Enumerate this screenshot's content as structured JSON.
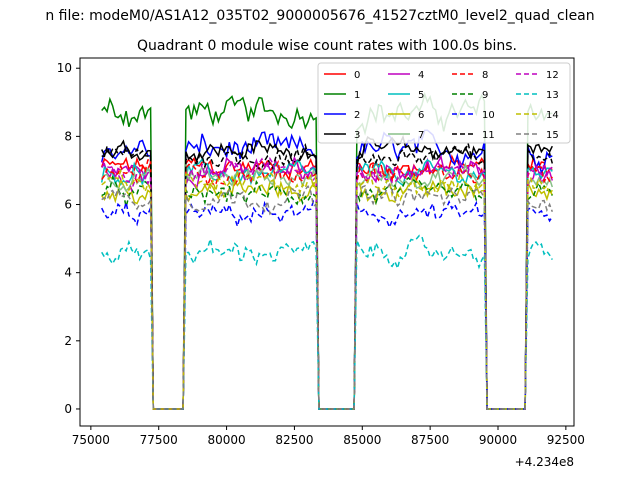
{
  "chart_data": {
    "type": "line",
    "suptitle": "n file: modeM0/AS1A12_035T02_9000005676_41527cztM0_level2_quad_clean",
    "title": "Quadrant 0 module wise count rates with 100.0s bins.",
    "xlabel": "",
    "ylabel": "",
    "x_offset_label": "+4.234e8",
    "xlim": [
      74600,
      92800
    ],
    "ylim": [
      -0.5,
      10.3
    ],
    "x_ticks": [
      75000,
      77500,
      80000,
      82500,
      85000,
      87500,
      90000,
      92500
    ],
    "x_tick_labels": [
      "75000",
      "77500",
      "80000",
      "82500",
      "85000",
      "87500",
      "90000",
      "92500"
    ],
    "y_ticks": [
      0,
      2,
      4,
      6,
      8,
      10
    ],
    "y_tick_labels": [
      "0",
      "2",
      "4",
      "6",
      "8",
      "10"
    ],
    "gaps": [
      [
        77300,
        78500
      ],
      [
        83500,
        84750
      ],
      [
        89600,
        91000
      ]
    ],
    "segments": [
      [
        75400,
        77200
      ],
      [
        78500,
        83300
      ],
      [
        84800,
        89500
      ],
      [
        91100,
        92000
      ]
    ],
    "bin_seconds": 100,
    "legend_position": "upper-right",
    "legend_columns": 4,
    "series": [
      {
        "name": "0",
        "color": "#ff0000",
        "dash": "solid",
        "mean": 7.1,
        "noise": 0.3
      },
      {
        "name": "1",
        "color": "#008000",
        "dash": "solid",
        "mean": 8.7,
        "noise": 0.4
      },
      {
        "name": "2",
        "color": "#0000ff",
        "dash": "solid",
        "mean": 7.6,
        "noise": 0.4
      },
      {
        "name": "3",
        "color": "#000000",
        "dash": "solid",
        "mean": 7.6,
        "noise": 0.3
      },
      {
        "name": "4",
        "color": "#bf00bf",
        "dash": "solid",
        "mean": 7.0,
        "noise": 0.3
      },
      {
        "name": "5",
        "color": "#00bfbf",
        "dash": "solid",
        "mean": 6.9,
        "noise": 0.3
      },
      {
        "name": "6",
        "color": "#bfbf00",
        "dash": "solid",
        "mean": 6.4,
        "noise": 0.3
      },
      {
        "name": "7",
        "color": "#88c088",
        "dash": "solid",
        "mean": 6.8,
        "noise": 0.3
      },
      {
        "name": "8",
        "color": "#ff0000",
        "dash": "dashed",
        "mean": 6.9,
        "noise": 0.3
      },
      {
        "name": "9",
        "color": "#008000",
        "dash": "dashed",
        "mean": 6.3,
        "noise": 0.3
      },
      {
        "name": "10",
        "color": "#0000ff",
        "dash": "dashed",
        "mean": 5.7,
        "noise": 0.3
      },
      {
        "name": "11",
        "color": "#000000",
        "dash": "dashed",
        "mean": 7.4,
        "noise": 0.3
      },
      {
        "name": "12",
        "color": "#bf00bf",
        "dash": "dashed",
        "mean": 7.0,
        "noise": 0.3
      },
      {
        "name": "13",
        "color": "#00bfbf",
        "dash": "dashed",
        "mean": 4.6,
        "noise": 0.3
      },
      {
        "name": "14",
        "color": "#bfbf00",
        "dash": "dashed",
        "mean": 6.6,
        "noise": 0.3
      },
      {
        "name": "15",
        "color": "#808080",
        "dash": "dashed",
        "mean": 6.2,
        "noise": 0.3
      }
    ]
  }
}
